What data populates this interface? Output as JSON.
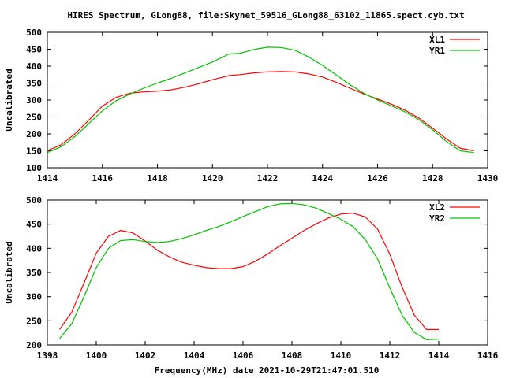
{
  "title": "HIRES Spectrum, GLong88, file:Skynet_59516_GLong88_63102_11865.spect.cyb.txt",
  "xlabel": "Frequency(MHz) date 2021-10-29T21:47:01.510",
  "colors": {
    "series_1": "#ff0000",
    "series_2": "#00c000",
    "axis": "#000000"
  },
  "chart_data": [
    {
      "type": "line",
      "ylabel": "Uncalibrated",
      "xlim": [
        1414,
        1430
      ],
      "ylim": [
        100,
        500
      ],
      "xticks": [
        1414,
        1416,
        1418,
        1420,
        1422,
        1424,
        1426,
        1428,
        1430
      ],
      "yticks": [
        100,
        150,
        200,
        250,
        300,
        350,
        400,
        450,
        500
      ],
      "legend_position": "top-right",
      "grid": false,
      "series": [
        {
          "name": "XL1",
          "color": "#ff0000",
          "x": [
            1414.0,
            1414.5,
            1415.0,
            1415.5,
            1416.0,
            1416.5,
            1417.0,
            1417.5,
            1418.0,
            1418.5,
            1419.0,
            1419.5,
            1420.0,
            1420.4,
            1420.6,
            1421.0,
            1421.5,
            1422.0,
            1422.5,
            1423.0,
            1423.5,
            1424.0,
            1424.5,
            1425.0,
            1425.5,
            1426.0,
            1426.5,
            1427.0,
            1427.5,
            1428.0,
            1428.5,
            1429.0,
            1429.5
          ],
          "y": [
            150,
            168,
            200,
            240,
            282,
            308,
            320,
            324,
            326,
            330,
            338,
            348,
            360,
            368,
            372,
            375,
            380,
            383,
            384,
            383,
            377,
            368,
            352,
            335,
            318,
            303,
            288,
            270,
            247,
            217,
            185,
            158,
            150
          ]
        },
        {
          "name": "YR1",
          "color": "#00c000",
          "x": [
            1414.0,
            1414.5,
            1415.0,
            1415.5,
            1416.0,
            1416.5,
            1417.0,
            1417.5,
            1418.0,
            1418.5,
            1419.0,
            1419.5,
            1420.0,
            1420.4,
            1420.6,
            1421.0,
            1421.5,
            1422.0,
            1422.5,
            1423.0,
            1423.5,
            1424.0,
            1424.5,
            1425.0,
            1425.5,
            1426.0,
            1426.5,
            1427.0,
            1427.5,
            1428.0,
            1428.5,
            1429.0,
            1429.5
          ],
          "y": [
            145,
            162,
            192,
            230,
            268,
            298,
            318,
            335,
            350,
            364,
            380,
            396,
            412,
            428,
            436,
            438,
            449,
            456,
            455,
            447,
            427,
            402,
            374,
            345,
            320,
            300,
            283,
            265,
            242,
            212,
            178,
            150,
            145
          ]
        }
      ]
    },
    {
      "type": "line",
      "ylabel": "Uncalibrated",
      "xlim": [
        1398,
        1416
      ],
      "ylim": [
        200,
        500
      ],
      "xticks": [
        1398,
        1400,
        1402,
        1404,
        1406,
        1408,
        1410,
        1412,
        1414,
        1416
      ],
      "yticks": [
        200,
        250,
        300,
        350,
        400,
        450,
        500
      ],
      "legend_position": "top-right",
      "grid": false,
      "series": [
        {
          "name": "XL2",
          "color": "#ff0000",
          "x": [
            1398.5,
            1399.0,
            1399.5,
            1400.0,
            1400.5,
            1401.0,
            1401.5,
            1402.0,
            1402.5,
            1403.0,
            1403.5,
            1404.0,
            1404.5,
            1405.0,
            1405.5,
            1406.0,
            1406.5,
            1407.0,
            1407.5,
            1408.0,
            1408.5,
            1409.0,
            1409.5,
            1410.0,
            1410.5,
            1411.0,
            1411.5,
            1412.0,
            1412.5,
            1413.0,
            1413.5,
            1414.0
          ],
          "y": [
            232,
            268,
            328,
            390,
            425,
            437,
            432,
            415,
            396,
            382,
            371,
            365,
            360,
            358,
            358,
            362,
            373,
            388,
            405,
            421,
            437,
            451,
            463,
            471,
            473,
            465,
            440,
            388,
            320,
            262,
            232,
            232
          ]
        },
        {
          "name": "YR2",
          "color": "#00c000",
          "x": [
            1398.5,
            1399.0,
            1399.5,
            1400.0,
            1400.5,
            1401.0,
            1401.5,
            1402.0,
            1402.5,
            1403.0,
            1403.5,
            1404.0,
            1404.5,
            1405.0,
            1405.5,
            1406.0,
            1406.5,
            1407.0,
            1407.5,
            1408.0,
            1408.5,
            1409.0,
            1409.5,
            1410.0,
            1410.5,
            1411.0,
            1411.5,
            1412.0,
            1412.5,
            1413.0,
            1413.5,
            1414.0
          ],
          "y": [
            213,
            244,
            300,
            360,
            400,
            416,
            418,
            414,
            412,
            414,
            420,
            428,
            437,
            445,
            455,
            466,
            476,
            486,
            492,
            493,
            490,
            483,
            472,
            460,
            445,
            418,
            378,
            318,
            262,
            226,
            211,
            212
          ]
        }
      ]
    }
  ]
}
